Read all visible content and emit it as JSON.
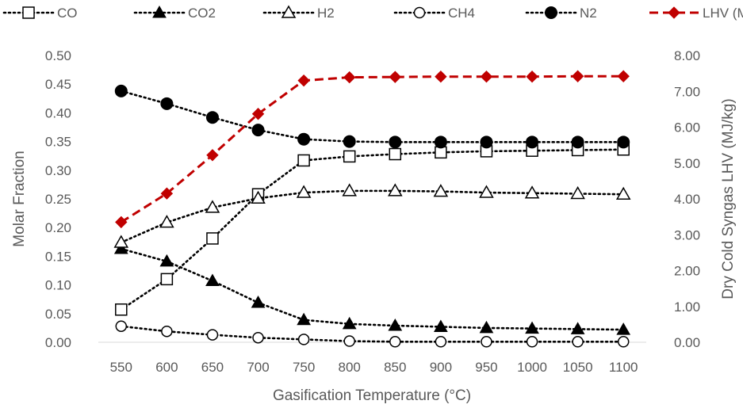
{
  "chart_data": {
    "type": "line",
    "title": "",
    "xlabel": "Gasification Temperature (°C)",
    "ylabel": "Molar Fraction",
    "y2label": "Dry Cold Syngas LHV (MJ/kg)",
    "categories": [
      "550",
      "600",
      "650",
      "700",
      "750",
      "800",
      "850",
      "900",
      "950",
      "1000",
      "1050",
      "1100"
    ],
    "ylim": [
      0,
      0.5
    ],
    "y2lim": [
      0,
      8
    ],
    "yticks": [
      "0.00",
      "0.05",
      "0.10",
      "0.15",
      "0.20",
      "0.25",
      "0.30",
      "0.35",
      "0.40",
      "0.45",
      "0.50"
    ],
    "y2ticks": [
      "0.00",
      "1.00",
      "2.00",
      "3.00",
      "4.00",
      "5.00",
      "6.00",
      "7.00",
      "8.00"
    ],
    "grid": false,
    "legend_position": "top",
    "series": [
      {
        "name": "CO",
        "axis": "left",
        "marker": "square-open",
        "line": "dotted",
        "color": "#000000",
        "values": [
          0.057,
          0.11,
          0.181,
          0.258,
          0.317,
          0.324,
          0.328,
          0.331,
          0.333,
          0.334,
          0.335,
          0.336
        ]
      },
      {
        "name": "CO2",
        "axis": "left",
        "marker": "triangle-filled",
        "line": "dotted",
        "color": "#000000",
        "values": [
          0.163,
          0.141,
          0.107,
          0.069,
          0.039,
          0.032,
          0.029,
          0.027,
          0.025,
          0.024,
          0.023,
          0.022
        ]
      },
      {
        "name": "H2",
        "axis": "left",
        "marker": "triangle-open",
        "line": "dotted",
        "color": "#000000",
        "values": [
          0.174,
          0.209,
          0.235,
          0.251,
          0.261,
          0.264,
          0.264,
          0.263,
          0.261,
          0.26,
          0.259,
          0.258
        ]
      },
      {
        "name": "CH4",
        "axis": "left",
        "marker": "circle-open",
        "line": "dotted",
        "color": "#000000",
        "values": [
          0.028,
          0.019,
          0.013,
          0.008,
          0.005,
          0.002,
          0.001,
          0.001,
          0.001,
          0.001,
          0.001,
          0.001
        ]
      },
      {
        "name": "N2",
        "axis": "left",
        "marker": "circle-filled",
        "line": "dotted",
        "color": "#000000",
        "values": [
          0.438,
          0.416,
          0.392,
          0.37,
          0.354,
          0.35,
          0.349,
          0.349,
          0.349,
          0.349,
          0.349,
          0.349
        ]
      },
      {
        "name": "LHV (MJ/kg)",
        "axis": "right",
        "marker": "diamond-filled",
        "line": "dashed",
        "color": "#C00000",
        "values": [
          3.35,
          4.15,
          5.22,
          6.37,
          7.3,
          7.39,
          7.4,
          7.41,
          7.41,
          7.41,
          7.42,
          7.42
        ]
      }
    ]
  }
}
